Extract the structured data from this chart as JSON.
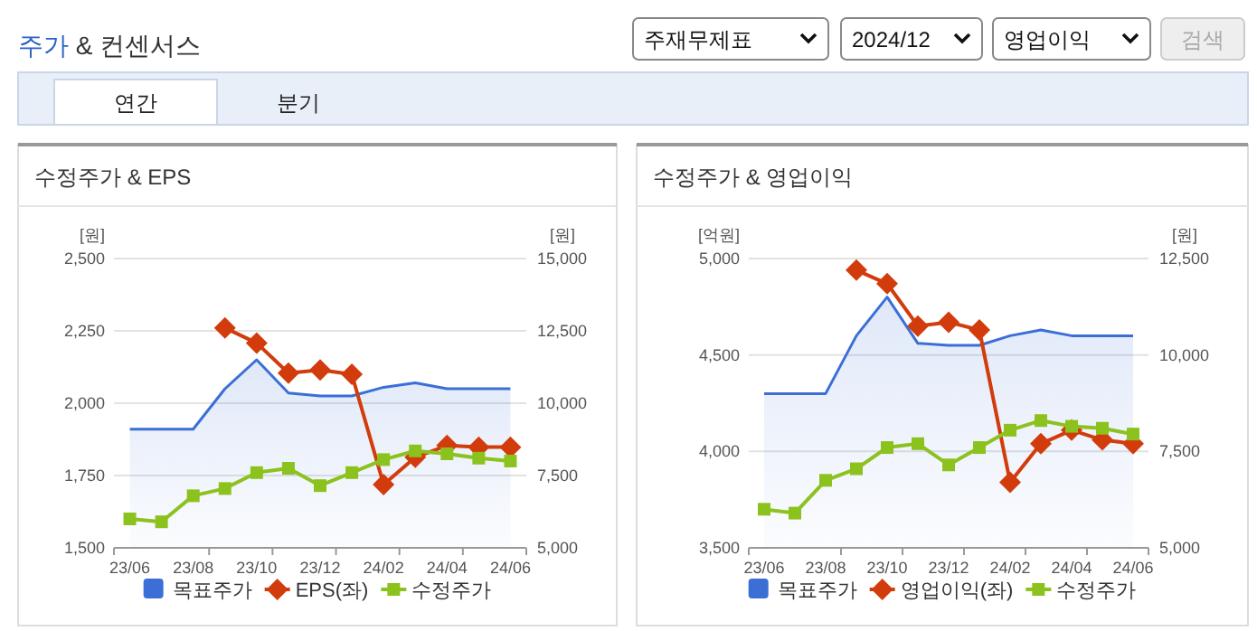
{
  "chart_data": [
    {
      "type": "other",
      "title": "주가 & 컨센서스",
      "annotations": [
        "주재무제표",
        "2024/12",
        "영업이익",
        "검색",
        "연간",
        "분기"
      ]
    },
    {
      "type": "line",
      "title": "수정주가 & EPS",
      "ylabel": "[원]",
      "y2label": "[원]",
      "categories": [
        "23/06",
        null,
        "23/08",
        null,
        "23/10",
        null,
        "23/12",
        null,
        "24/02",
        null,
        "24/04",
        null,
        "24/06"
      ],
      "ylim": [
        1500,
        2500
      ],
      "yticks": [
        {
          "value": 1500,
          "label": "1,500"
        },
        {
          "value": 1750,
          "label": "1,750"
        },
        {
          "value": 2000,
          "label": "2,000"
        },
        {
          "value": 2250,
          "label": "2,250"
        },
        {
          "value": 2500,
          "label": "2,500"
        }
      ],
      "y2lim": [
        5000,
        15000
      ],
      "y2ticks": [
        {
          "value": 5000,
          "label": "5,000"
        },
        {
          "value": 7500,
          "label": "7,500"
        },
        {
          "value": 10000,
          "label": "10,000"
        },
        {
          "value": 12500,
          "label": "12,500"
        },
        {
          "value": 15000,
          "label": "15,000"
        }
      ],
      "series": [
        {
          "name": "목표주가",
          "type": "area",
          "axis": "y2",
          "color": "#3b6fd6",
          "marker": "none",
          "values": [
            9100,
            9100,
            9100,
            10500,
            11500,
            10350,
            10250,
            10250,
            10550,
            10700,
            10500,
            10500,
            10500
          ]
        },
        {
          "name": "EPS(좌)",
          "type": "line",
          "color": "#d23c0c",
          "marker": "diamond",
          "values": [
            null,
            null,
            null,
            2260,
            2208,
            2104,
            2115,
            2100,
            1719,
            1813,
            1854,
            1848,
            1848
          ]
        },
        {
          "name": "수정주가",
          "type": "line",
          "axis": "y2",
          "color": "#8cc21e",
          "marker": "square",
          "values": [
            6000,
            5900,
            6800,
            7050,
            7600,
            7750,
            7150,
            7600,
            8050,
            8350,
            8250,
            8100,
            8000
          ]
        }
      ],
      "grid": "y",
      "legend": "bottom"
    },
    {
      "type": "line",
      "title": "수정주가 & 영업이익",
      "ylabel": "[억원]",
      "y2label": "[원]",
      "categories": [
        "23/06",
        null,
        "23/08",
        null,
        "23/10",
        null,
        "23/12",
        null,
        "24/02",
        null,
        "24/04",
        null,
        "24/06"
      ],
      "ylim": [
        3500,
        5000
      ],
      "yticks": [
        {
          "value": 3500,
          "label": "3,500"
        },
        {
          "value": 4000,
          "label": "4,000"
        },
        {
          "value": 4500,
          "label": "4,500"
        },
        {
          "value": 5000,
          "label": "5,000"
        }
      ],
      "y2lim": [
        5000,
        12500
      ],
      "y2ticks": [
        {
          "value": 5000,
          "label": "5,000"
        },
        {
          "value": 7500,
          "label": "7,500"
        },
        {
          "value": 10000,
          "label": "10,000"
        },
        {
          "value": 12500,
          "label": "12,500"
        }
      ],
      "series": [
        {
          "name": "목표주가",
          "type": "area",
          "axis": "y2",
          "color": "#3b6fd6",
          "marker": "none",
          "values": [
            9000,
            9000,
            9000,
            10500,
            11500,
            10300,
            10250,
            10250,
            10500,
            10650,
            10500,
            10500,
            10500
          ]
        },
        {
          "name": "영업이익(좌)",
          "type": "line",
          "color": "#d23c0c",
          "marker": "diamond",
          "values": [
            null,
            null,
            null,
            4940,
            4870,
            4650,
            4670,
            4630,
            3840,
            4040,
            4110,
            4060,
            4040
          ]
        },
        {
          "name": "수정주가",
          "type": "line",
          "axis": "y2",
          "color": "#8cc21e",
          "marker": "square",
          "values": [
            6000,
            5900,
            6750,
            7050,
            7600,
            7700,
            7150,
            7600,
            8050,
            8300,
            8150,
            8100,
            7950
          ]
        }
      ],
      "grid": "y",
      "legend": "bottom"
    }
  ]
}
